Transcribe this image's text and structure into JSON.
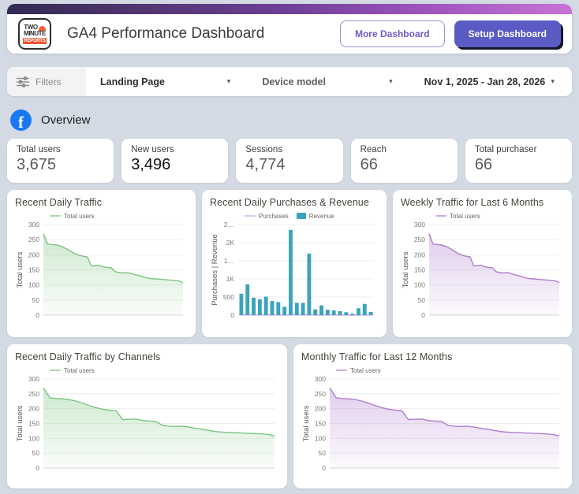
{
  "header": {
    "logo": {
      "line1": "TWO",
      "line2": "MINUTE",
      "line3": "REPORTS"
    },
    "title": "GA4 Performance Dashboard",
    "buttons": {
      "more": "More Dashboard",
      "setup": "Setup Dashboard"
    }
  },
  "filters": {
    "label": "Filters",
    "dropdowns": [
      {
        "label": "Landing Page"
      },
      {
        "label": "Device model"
      },
      {
        "label": "Nov 1, 2025 - Jan 28, 2026"
      }
    ]
  },
  "overview": {
    "label": "Overview",
    "icon": "facebook-icon"
  },
  "kpis": [
    {
      "label": "Total users",
      "value": "3,675",
      "emphasis": false
    },
    {
      "label": "New users",
      "value": "3,496",
      "emphasis": true
    },
    {
      "label": "Sessions",
      "value": "4,774",
      "emphasis": false
    },
    {
      "label": "Reach",
      "value": "66",
      "emphasis": false
    },
    {
      "label": "Total purchaser",
      "value": "66",
      "emphasis": false
    }
  ],
  "colors": {
    "green_line": "#7bc47f",
    "purple_line": "#b07cd0",
    "teal_bar": "#3ba3bd",
    "purchases_line": "#c9a4de",
    "accent_purple": "#5a5bc4",
    "header_gradient_start": "#322a52",
    "header_gradient_end": "#c873d6"
  },
  "chart_data": [
    {
      "type": "area",
      "title": "Recent Daily Traffic",
      "ylabel": "Total users",
      "ylim": [
        0,
        300
      ],
      "yticks": [
        0,
        50,
        100,
        150,
        200,
        250,
        300
      ],
      "grid": true,
      "legend_position": "top-left",
      "series": [
        {
          "name": "Total users",
          "type": "area",
          "color": "#7bc47f",
          "values": [
            270,
            236,
            234,
            233,
            230,
            225,
            218,
            210,
            203,
            198,
            195,
            193,
            163,
            164,
            165,
            160,
            158,
            157,
            144,
            141,
            140,
            141,
            138,
            134,
            131,
            127,
            123,
            121,
            120,
            119,
            118,
            117,
            116,
            115,
            113,
            108
          ]
        }
      ]
    },
    {
      "type": "bar",
      "title": "Recent Daily Purchases & Revenue",
      "ylabel": "Purchases | Revenue",
      "ylim": [
        0,
        2500
      ],
      "yticks": [
        0,
        500,
        1000,
        1500,
        2000,
        2500
      ],
      "ytick_labels": [
        "0",
        "500",
        "1K",
        "1…",
        "2K",
        "2…"
      ],
      "grid": true,
      "legend_position": "top-left",
      "series": [
        {
          "name": "Purchases",
          "type": "line",
          "color": "#c9a4de",
          "values": [
            5,
            8,
            4,
            4,
            5,
            3,
            3,
            2,
            12,
            3,
            3,
            9,
            2,
            2,
            1,
            1,
            1,
            1,
            0,
            2,
            3,
            1
          ]
        },
        {
          "name": "Revenue",
          "type": "bar",
          "color": "#3ba3bd",
          "values": [
            590,
            850,
            480,
            440,
            510,
            390,
            360,
            230,
            2350,
            340,
            340,
            1700,
            160,
            270,
            150,
            130,
            110,
            80,
            40,
            190,
            310,
            90
          ]
        }
      ]
    },
    {
      "type": "area",
      "title": "Weekly Traffic for Last 6 Months",
      "ylabel": "Total users",
      "ylim": [
        0,
        300
      ],
      "yticks": [
        0,
        50,
        100,
        150,
        200,
        250,
        300
      ],
      "grid": true,
      "legend_position": "top-left",
      "series": [
        {
          "name": "Total users",
          "type": "area",
          "color": "#b07cd0",
          "values": [
            270,
            236,
            234,
            233,
            230,
            225,
            218,
            210,
            203,
            198,
            195,
            193,
            163,
            164,
            165,
            160,
            158,
            157,
            144,
            141,
            140,
            141,
            138,
            134,
            131,
            127,
            123,
            121,
            120,
            119,
            118,
            117,
            116,
            115,
            113,
            108
          ]
        }
      ]
    },
    {
      "type": "area",
      "title": "Recent Daily Traffic by Channels",
      "ylabel": "Total users",
      "ylim": [
        0,
        300
      ],
      "yticks": [
        0,
        50,
        100,
        150,
        200,
        250,
        300
      ],
      "grid": true,
      "legend_position": "top-left",
      "series": [
        {
          "name": "Total users",
          "type": "area",
          "color": "#7bc47f",
          "values": [
            270,
            236,
            234,
            233,
            230,
            225,
            218,
            210,
            203,
            198,
            195,
            193,
            163,
            164,
            165,
            160,
            158,
            157,
            144,
            141,
            140,
            141,
            138,
            134,
            131,
            127,
            123,
            121,
            120,
            119,
            118,
            117,
            116,
            115,
            113,
            108
          ]
        }
      ]
    },
    {
      "type": "area",
      "title": "Monthly Traffic for Last 12 Months",
      "ylabel": "Total users",
      "ylim": [
        0,
        300
      ],
      "yticks": [
        0,
        50,
        100,
        150,
        200,
        250,
        300
      ],
      "grid": true,
      "legend_position": "top-left",
      "series": [
        {
          "name": "Total users",
          "type": "area",
          "color": "#b07cd0",
          "values": [
            270,
            236,
            234,
            233,
            230,
            225,
            218,
            210,
            203,
            198,
            195,
            193,
            163,
            164,
            165,
            160,
            158,
            157,
            144,
            141,
            140,
            141,
            138,
            134,
            131,
            127,
            123,
            121,
            120,
            119,
            118,
            117,
            116,
            115,
            113,
            108
          ]
        }
      ]
    }
  ]
}
